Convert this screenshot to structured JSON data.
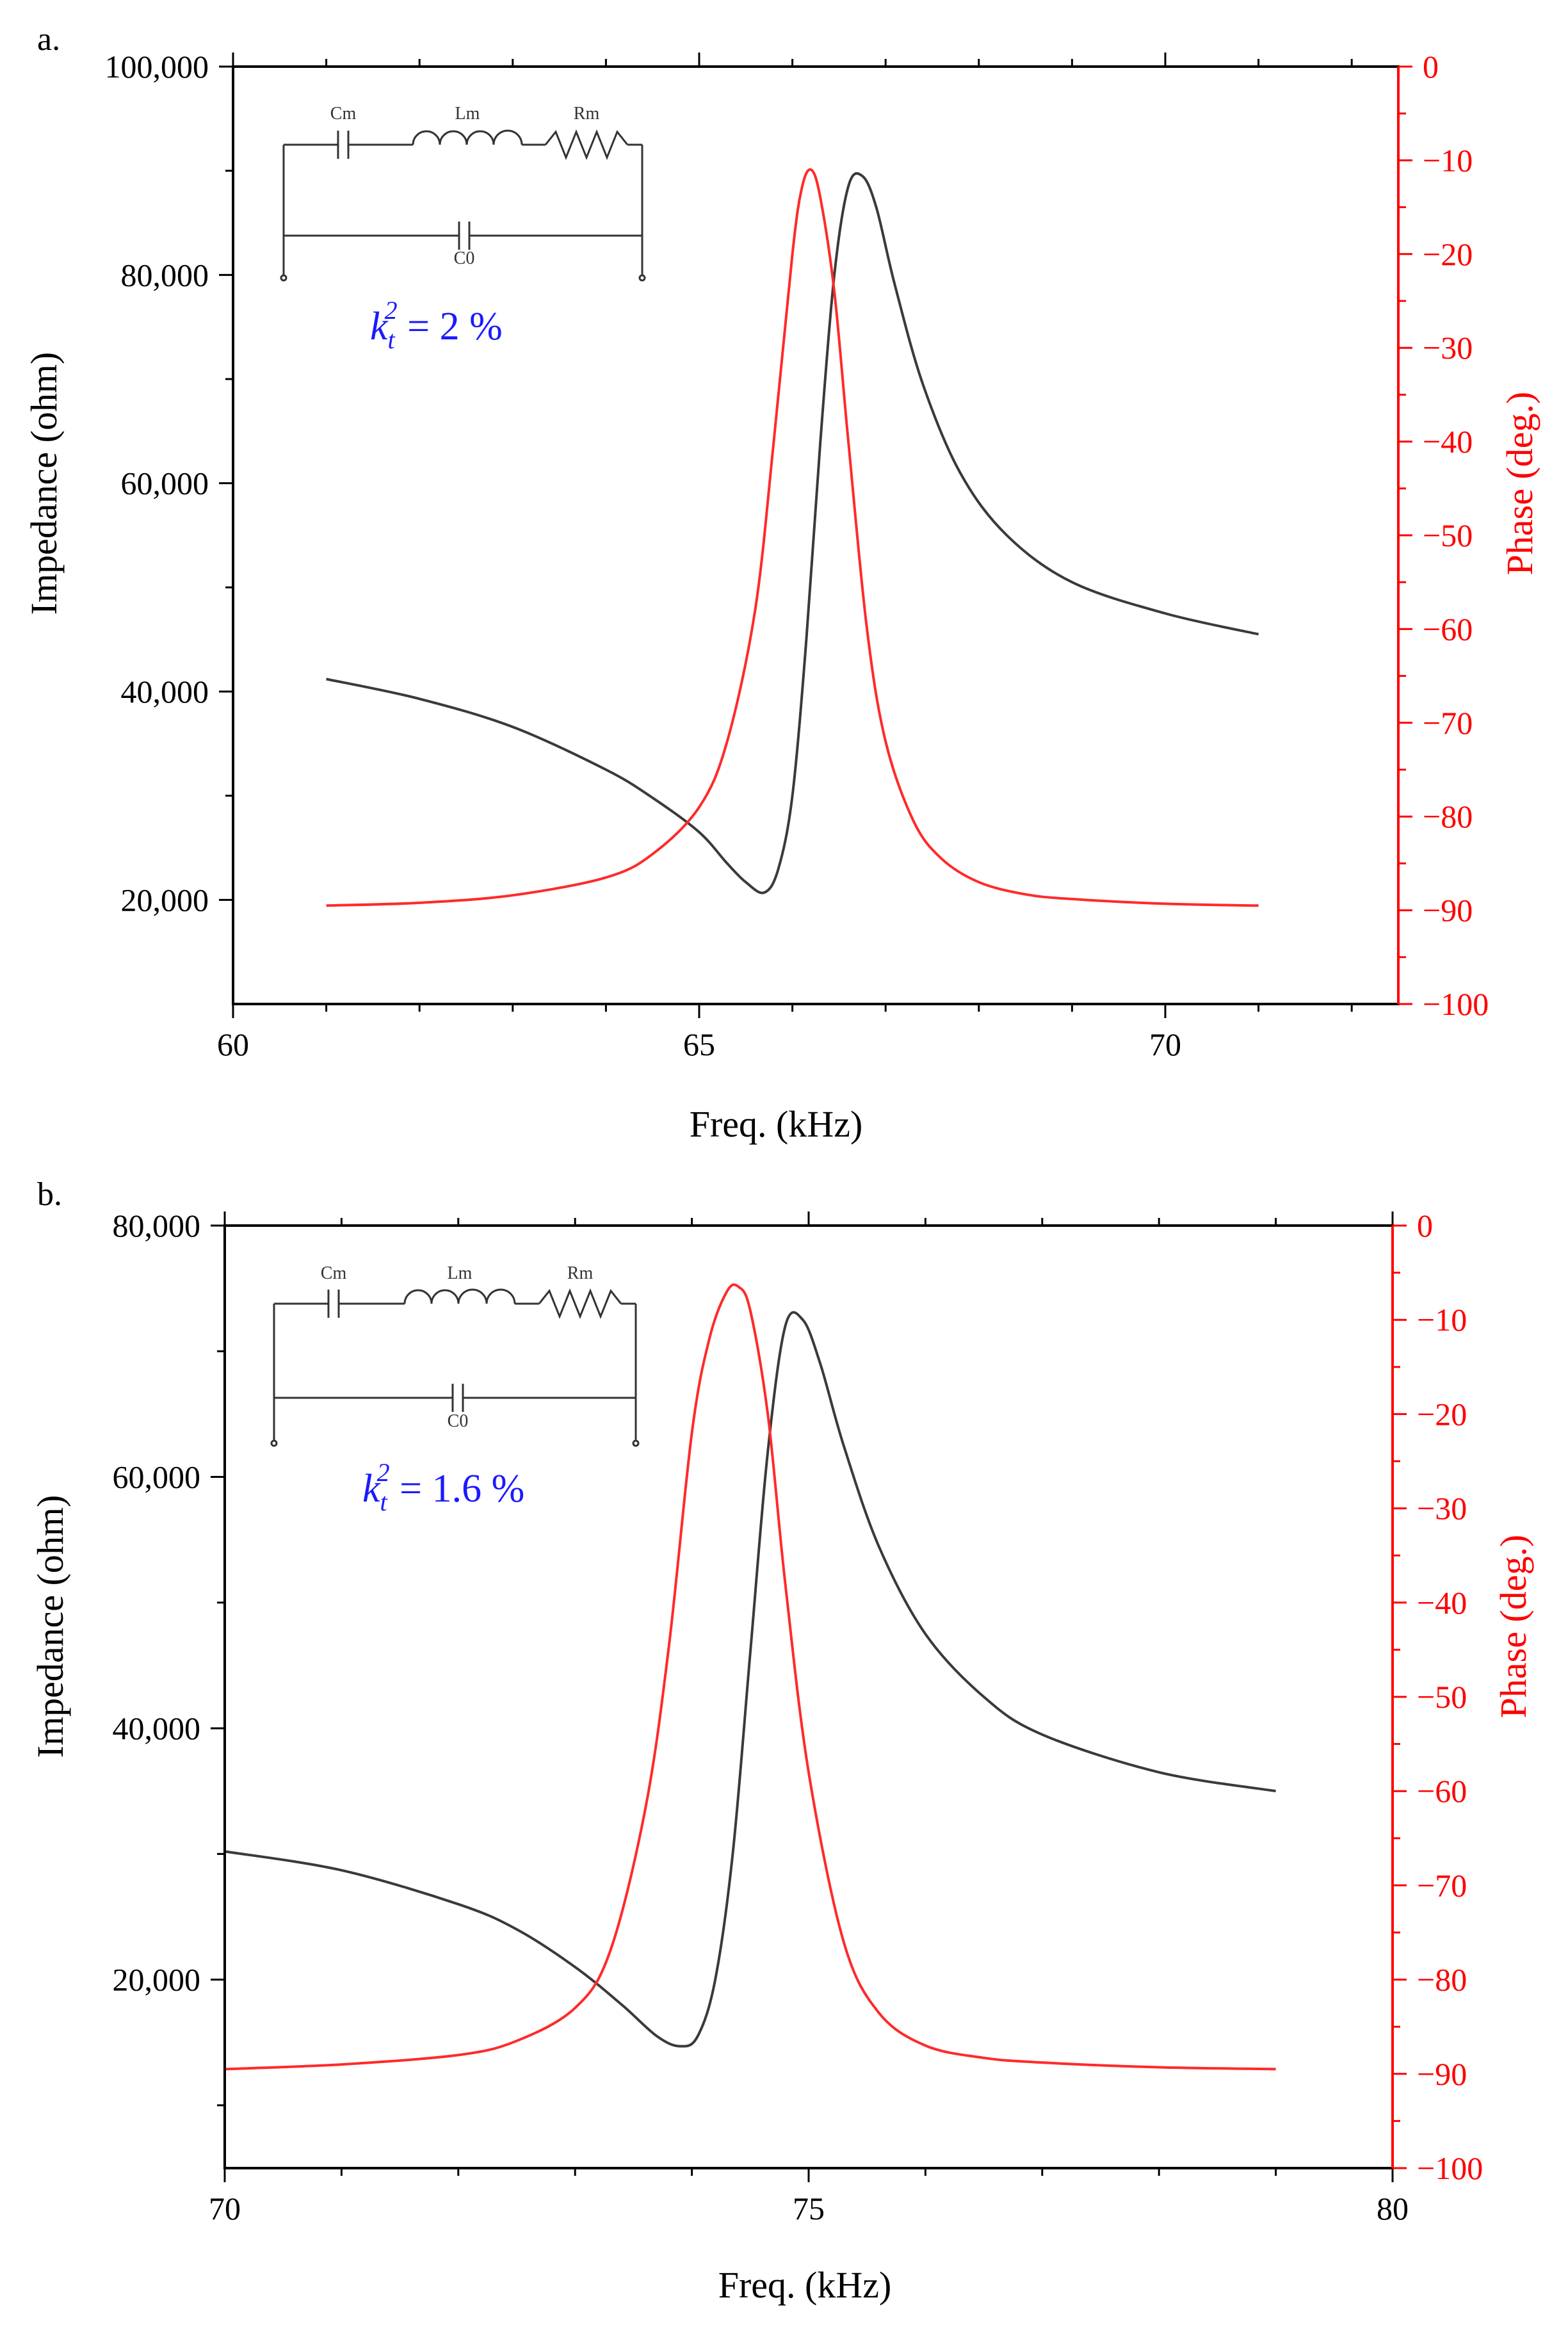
{
  "chart_data": [
    {
      "type": "line",
      "panel_label": "a.",
      "xlabel": "Freq. (kHz)",
      "ylabel": "Impedance (ohm)",
      "y2label": "Phase (deg.)",
      "xlim": [
        60,
        72.5
      ],
      "ylim": [
        10000,
        100000
      ],
      "y2lim": [
        -100,
        0
      ],
      "x_ticks": [
        60,
        65,
        70
      ],
      "x_tick_labels": [
        "60",
        "65",
        "70"
      ],
      "y_ticks": [
        20000,
        40000,
        60000,
        80000,
        100000
      ],
      "y_tick_labels": [
        "20,000",
        "40,000",
        "60,000",
        "80,000",
        "100,000"
      ],
      "y2_ticks": [
        0,
        -10,
        -20,
        -30,
        -40,
        -50,
        -60,
        -70,
        -80,
        -90,
        -100
      ],
      "y2_tick_labels": [
        "0",
        "−10",
        "−20",
        "−30",
        "−40",
        "−50",
        "−60",
        "−70",
        "−80",
        "−90",
        "−100"
      ],
      "series": [
        {
          "name": "Impedance",
          "axis": "left",
          "color": "#3a3a3a",
          "x": [
            61.0,
            62.0,
            63.0,
            64.0,
            64.5,
            65.0,
            65.3,
            65.5,
            65.7,
            65.85,
            66.0,
            66.15,
            66.3,
            66.45,
            66.6,
            66.75,
            66.9,
            67.1,
            67.4,
            67.8,
            68.3,
            69.0,
            70.0,
            71.0
          ],
          "y": [
            41200,
            39300,
            36600,
            32500,
            29800,
            26500,
            23500,
            21700,
            20700,
            23000,
            30000,
            45000,
            64000,
            80000,
            88500,
            89500,
            86500,
            79000,
            69500,
            61000,
            55000,
            50500,
            47500,
            45500
          ]
        },
        {
          "name": "Phase",
          "axis": "right",
          "color": "#ff2a2a",
          "x": [
            61.0,
            62.0,
            63.0,
            64.0,
            64.5,
            65.0,
            65.3,
            65.6,
            65.8,
            66.0,
            66.1,
            66.2,
            66.3,
            66.45,
            66.6,
            66.8,
            67.0,
            67.3,
            67.6,
            68.0,
            68.5,
            69.0,
            70.0,
            71.0
          ],
          "y": [
            -89.5,
            -89.2,
            -88.4,
            -86.5,
            -84.0,
            -79.0,
            -72.0,
            -58.0,
            -40.0,
            -20.0,
            -13.0,
            -11.0,
            -14.0,
            -24.0,
            -40.0,
            -60.0,
            -72.0,
            -80.5,
            -84.5,
            -87.0,
            -88.3,
            -88.8,
            -89.3,
            -89.5
          ]
        }
      ],
      "inset": {
        "components": [
          "Cm",
          "Lm",
          "Rm",
          "C0"
        ],
        "kt_symbol": "k",
        "kt_sub": "t",
        "kt_sup": "2",
        "kt_value": " = 2 %"
      }
    },
    {
      "type": "line",
      "panel_label": "b.",
      "xlabel": "Freq. (kHz)",
      "ylabel": "Impedance (ohm)",
      "y2label": "Phase (deg.)",
      "xlim": [
        70,
        80
      ],
      "ylim": [
        5000,
        80000
      ],
      "y2lim": [
        -100,
        0
      ],
      "x_ticks": [
        70,
        75,
        80
      ],
      "x_tick_labels": [
        "70",
        "75",
        "80"
      ],
      "y_ticks": [
        20000,
        40000,
        60000,
        80000
      ],
      "y_tick_labels": [
        "20,000",
        "40,000",
        "60,000",
        "80,000"
      ],
      "y2_ticks": [
        0,
        -10,
        -20,
        -30,
        -40,
        -50,
        -60,
        -70,
        -80,
        -90,
        -100
      ],
      "y2_tick_labels": [
        "0",
        "−10",
        "−20",
        "−30",
        "−40",
        "−50",
        "−60",
        "−70",
        "−80",
        "−90",
        "−100"
      ],
      "series": [
        {
          "name": "Impedance",
          "axis": "left",
          "color": "#3a3a3a",
          "x": [
            70.0,
            71.0,
            72.0,
            72.5,
            73.0,
            73.4,
            73.7,
            73.9,
            74.05,
            74.2,
            74.35,
            74.5,
            74.65,
            74.8,
            74.95,
            75.1,
            75.3,
            75.6,
            76.0,
            76.5,
            77.0,
            78.0,
            79.0
          ],
          "y": [
            30200,
            28700,
            26000,
            24000,
            21000,
            18000,
            15500,
            14700,
            15500,
            20000,
            30000,
            46000,
            62000,
            72000,
            72500,
            69000,
            62500,
            54500,
            47500,
            42500,
            39500,
            36500,
            35000
          ]
        },
        {
          "name": "Phase",
          "axis": "right",
          "color": "#ff2a2a",
          "x": [
            70.0,
            71.0,
            72.0,
            72.5,
            73.0,
            73.3,
            73.6,
            73.8,
            74.0,
            74.15,
            74.3,
            74.4,
            74.5,
            74.65,
            74.8,
            75.0,
            75.3,
            75.6,
            76.0,
            76.5,
            77.0,
            78.0,
            79.0
          ],
          "y": [
            -89.5,
            -89.0,
            -88.0,
            -86.5,
            -83.0,
            -77.0,
            -62.0,
            -45.0,
            -22.0,
            -12.0,
            -7.0,
            -6.5,
            -9.0,
            -20.0,
            -38.0,
            -58.0,
            -76.0,
            -83.5,
            -87.0,
            -88.3,
            -88.8,
            -89.3,
            -89.5
          ]
        }
      ],
      "inset": {
        "components": [
          "Cm",
          "Lm",
          "Rm",
          "C0"
        ],
        "kt_symbol": "k",
        "kt_sub": "t",
        "kt_sup": "2",
        "kt_value": " = 1.6 %"
      }
    }
  ]
}
